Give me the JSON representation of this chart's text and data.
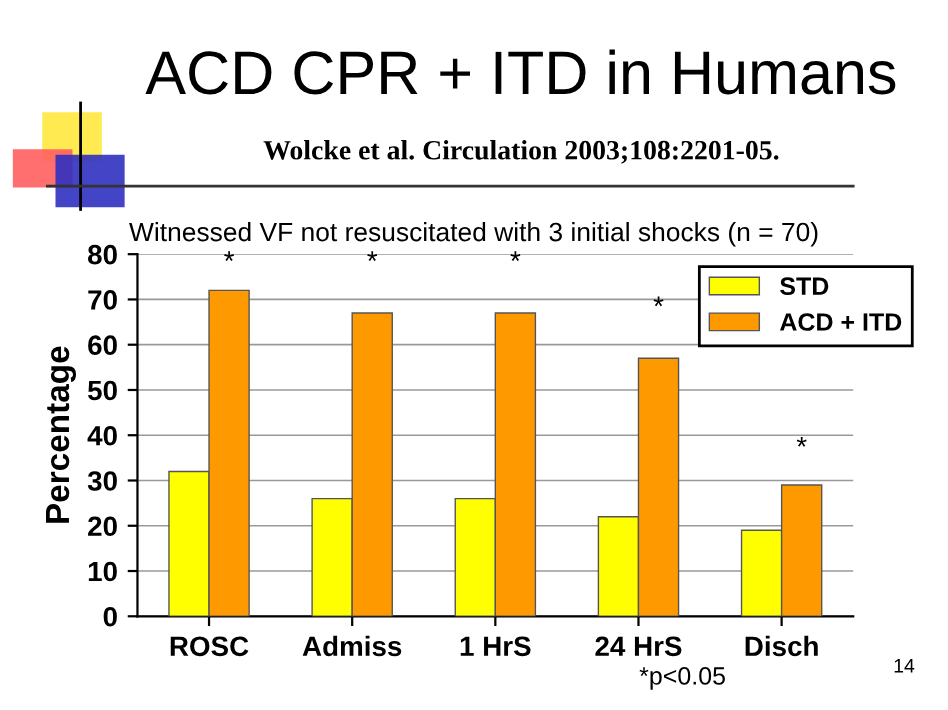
{
  "chart_data": {
    "type": "bar",
    "title": "ACD CPR + ITD in Humans",
    "subtitle": "Wolcke et al. Circulation 2003;108:2201-05.",
    "ylabel": "Percentage",
    "categories": [
      "ROSC",
      "Admiss",
      "1 HrS",
      "24 HrS",
      "Disch"
    ],
    "series": [
      {
        "name": "STD",
        "color": "#ffff00",
        "values": [
          32,
          26,
          26,
          22,
          19
        ]
      },
      {
        "name": "ACD + ITD",
        "color": "#ff9900",
        "values": [
          72,
          67,
          67,
          57,
          29
        ]
      }
    ],
    "ylim": [
      0,
      80
    ],
    "yticks": [
      0,
      10,
      20,
      30,
      40,
      50,
      60,
      70,
      80
    ],
    "grid": "y",
    "legend": "top right",
    "annotations": [
      "Witnessed VF not resuscitated with 3 initial shocks (n = 70)",
      "*",
      "*",
      "*",
      "*",
      "*",
      "*p<0.05",
      "14"
    ]
  }
}
